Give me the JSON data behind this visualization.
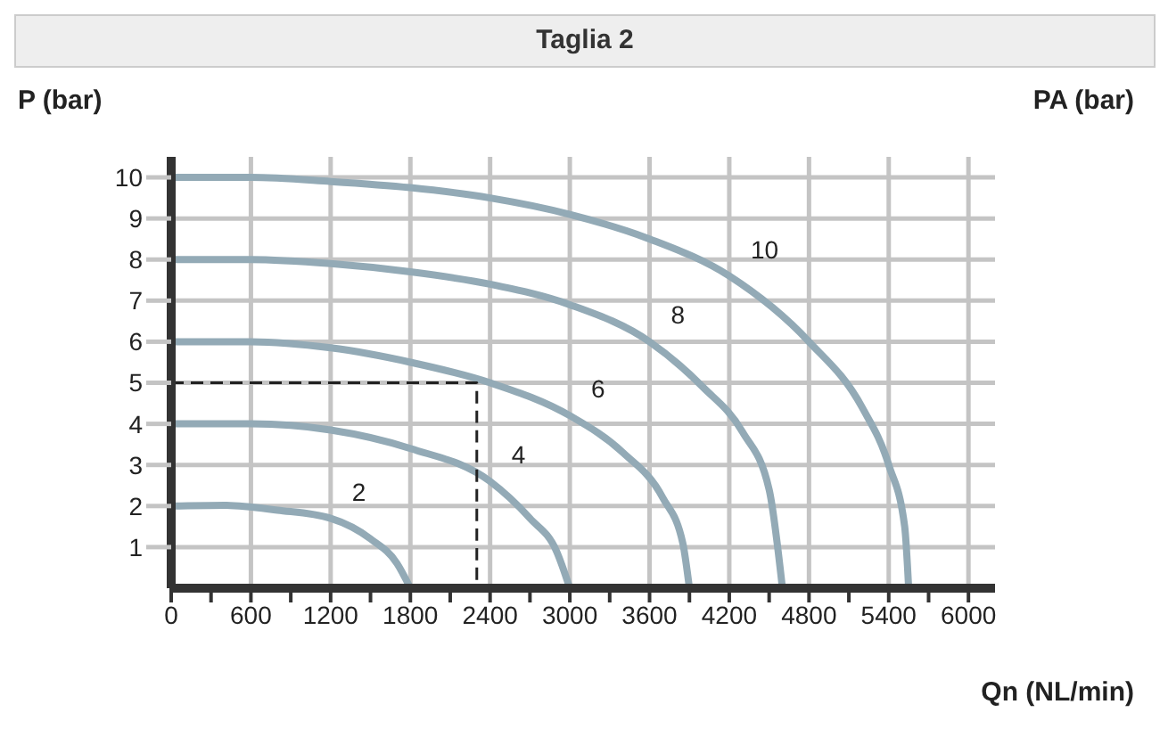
{
  "chart_data": {
    "type": "line",
    "title": "Taglia 2",
    "xlabel": "Qn (NL/min)",
    "ylabel": "P (bar)",
    "y2label": "PA (bar)",
    "xlim": [
      0,
      6200
    ],
    "ylim": [
      0,
      10.5
    ],
    "xticks": [
      {
        "value": 0,
        "label": "0"
      },
      {
        "value": 300,
        "label": null
      },
      600,
      {
        "value": 900,
        "label": null
      },
      1200,
      {
        "value": 1500,
        "label": null
      },
      1800,
      {
        "value": 2100,
        "label": null
      },
      2400,
      {
        "value": 2700,
        "label": null
      },
      3000,
      {
        "value": 3300,
        "label": null
      },
      3600,
      {
        "value": 3900,
        "label": null
      },
      4200,
      {
        "value": 4500,
        "label": null
      },
      4800,
      {
        "value": 5100,
        "label": null
      },
      5400,
      {
        "value": 5700,
        "label": null
      },
      6000
    ],
    "yticks": [
      1,
      2,
      3,
      4,
      5,
      6,
      7,
      8,
      9,
      10
    ],
    "grid": true,
    "marker": "none",
    "line_style": "solid",
    "series": [
      {
        "name": "2",
        "color": "#93aab6",
        "x": [
          0,
          400,
          800,
          1200,
          1500,
          1700,
          1800
        ],
        "values": [
          2,
          2.02,
          1.9,
          1.7,
          1.2,
          0.6,
          0
        ]
      },
      {
        "name": "4",
        "color": "#93aab6",
        "x": [
          0,
          600,
          1200,
          1800,
          2400,
          2700,
          2900,
          3000
        ],
        "values": [
          4,
          4,
          3.85,
          3.4,
          2.6,
          1.7,
          0.9,
          0
        ]
      },
      {
        "name": "6",
        "color": "#93aab6",
        "x": [
          0,
          600,
          1200,
          1800,
          2400,
          3000,
          3400,
          3700,
          3850,
          3900
        ],
        "values": [
          6,
          6,
          5.85,
          5.5,
          5,
          4.2,
          3.3,
          2.2,
          1.1,
          0
        ]
      },
      {
        "name": "8",
        "color": "#93aab6",
        "x": [
          0,
          600,
          1200,
          1800,
          2400,
          3000,
          3600,
          4000,
          4300,
          4500,
          4600
        ],
        "values": [
          8,
          8,
          7.9,
          7.7,
          7.4,
          6.9,
          6,
          4.9,
          3.8,
          2.4,
          0
        ]
      },
      {
        "name": "10",
        "color": "#93aab6",
        "x": [
          0,
          600,
          1200,
          1800,
          2400,
          3000,
          3600,
          4200,
          4800,
          5200,
          5400,
          5520,
          5550
        ],
        "values": [
          10,
          10,
          9.9,
          9.75,
          9.5,
          9.1,
          8.5,
          7.6,
          6,
          4.4,
          3,
          1.5,
          0
        ]
      },
      {
        "color": "#222222",
        "line_style": "dashed",
        "x": [
          0,
          2300,
          2300
        ],
        "values": [
          5,
          5,
          0
        ]
      }
    ]
  }
}
